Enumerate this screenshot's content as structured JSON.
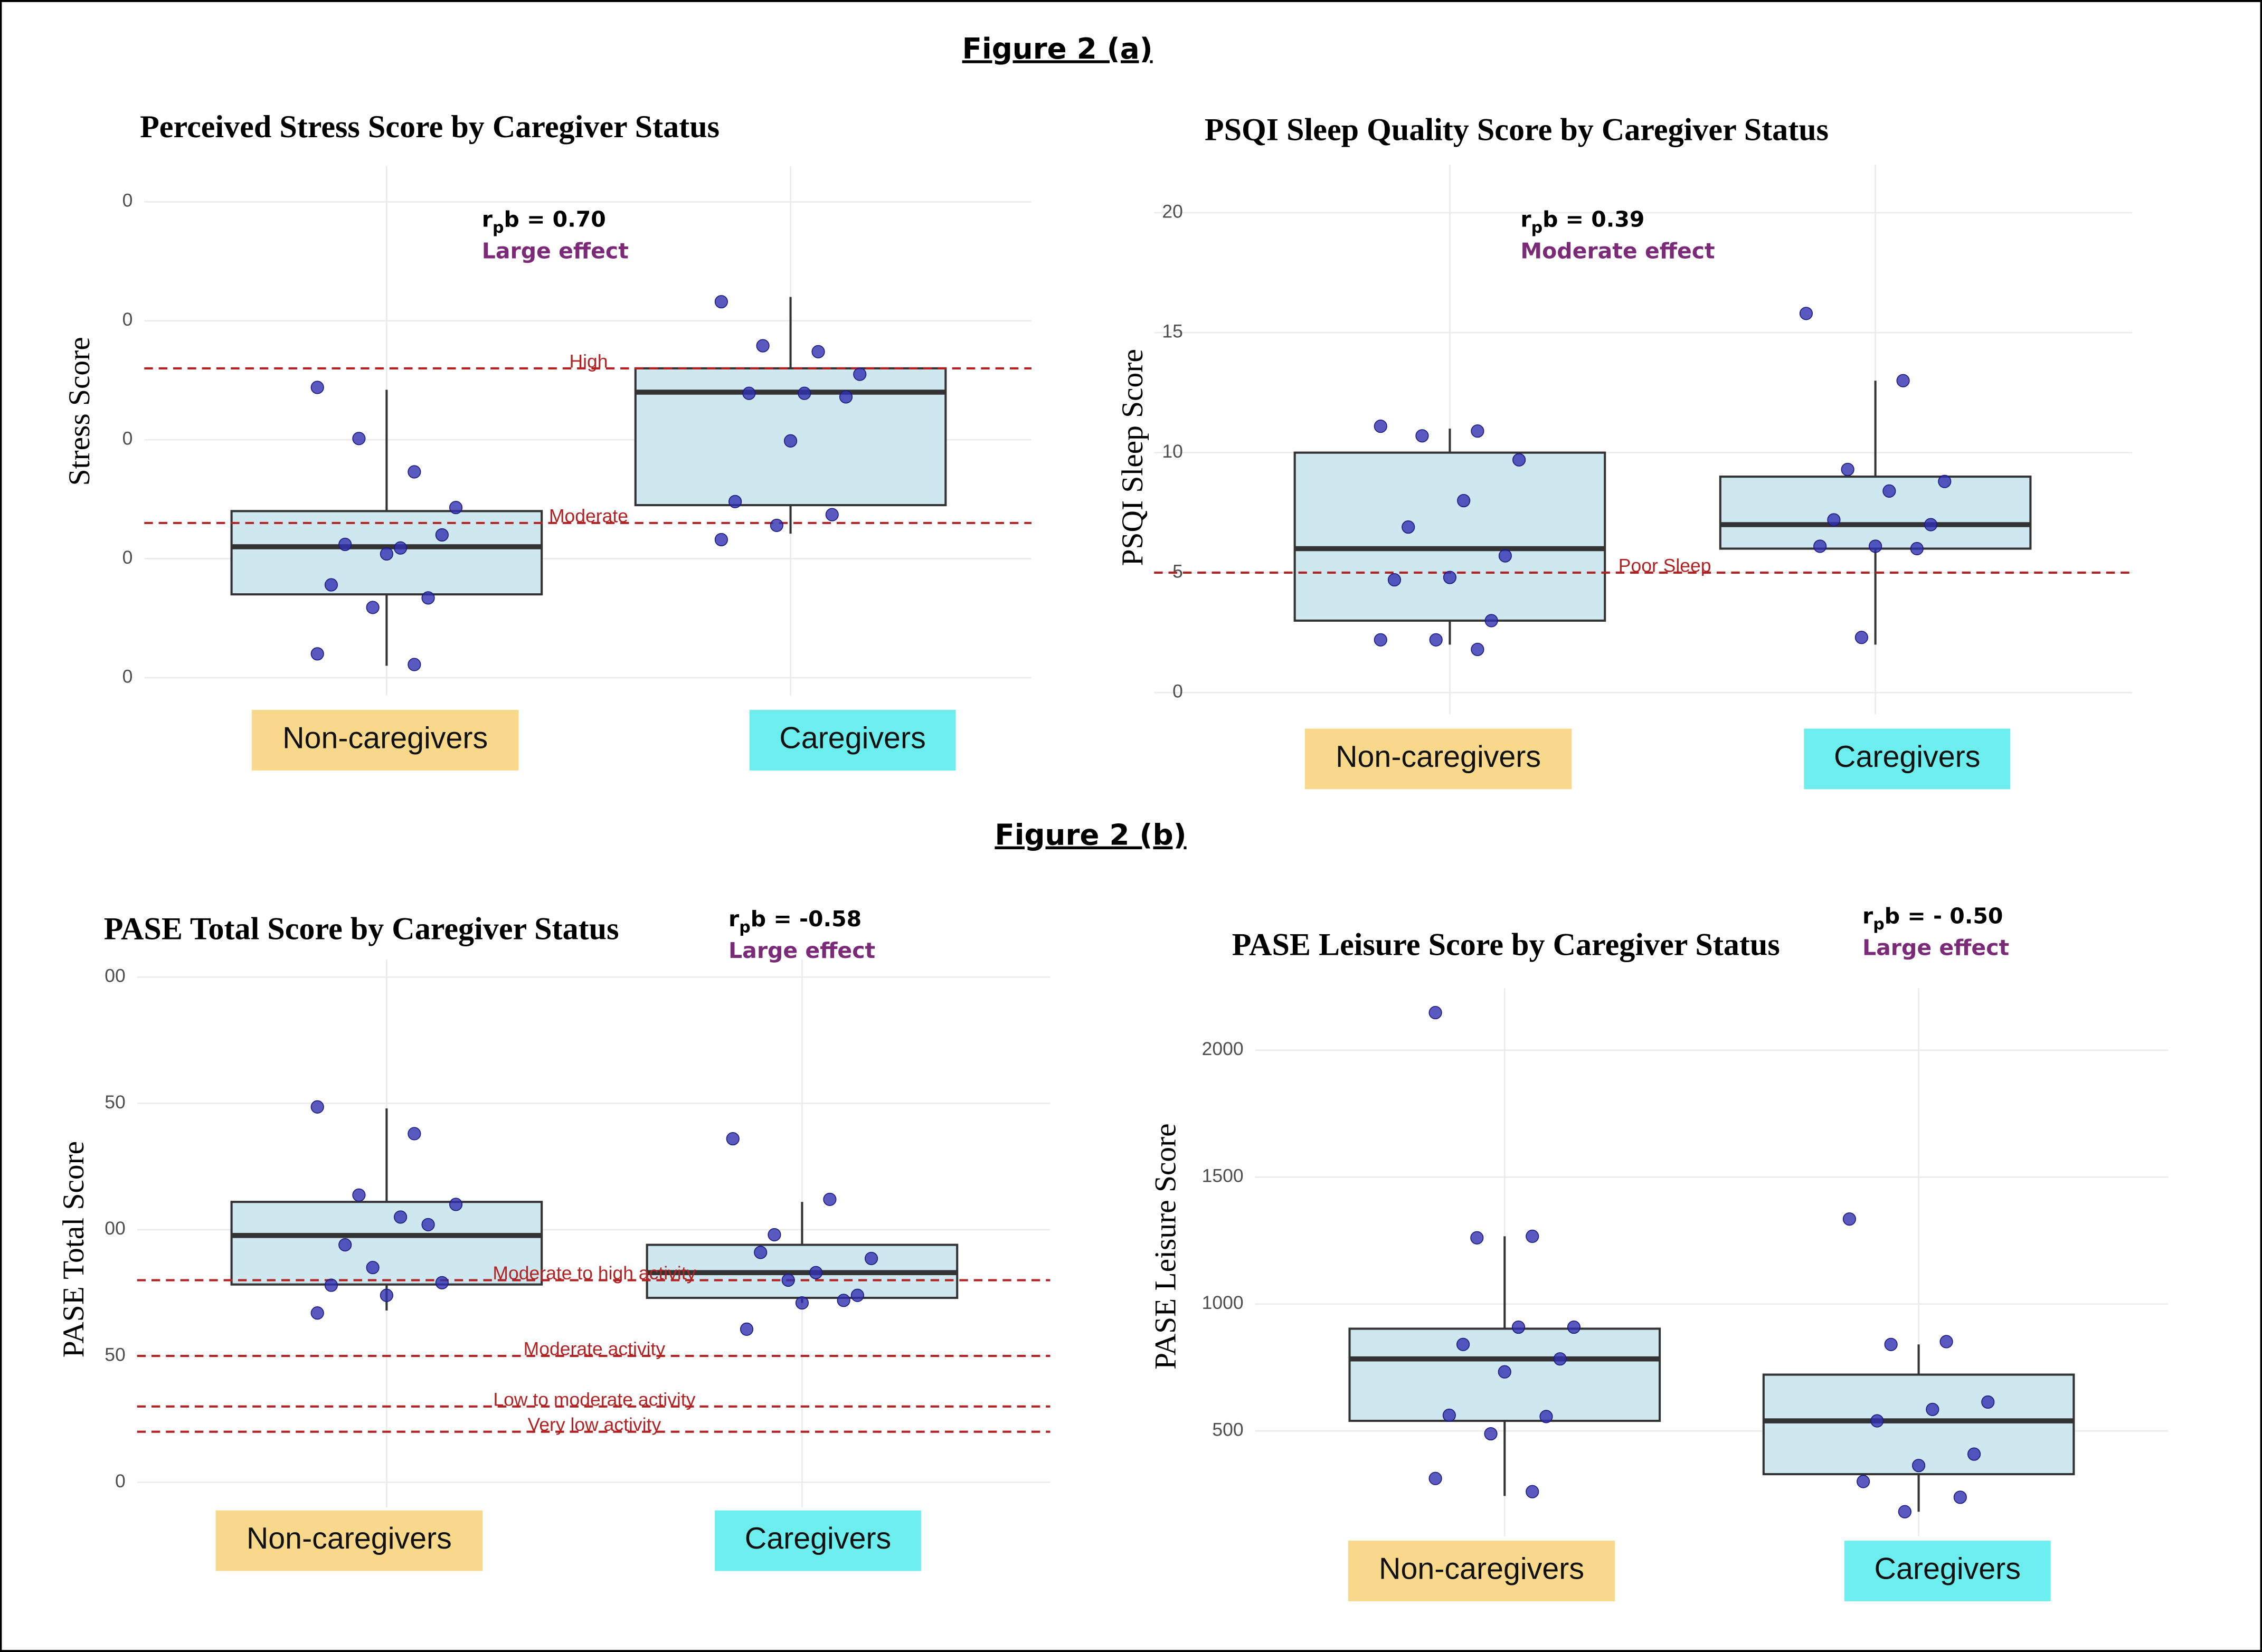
{
  "figure_labels": [
    "Figure 2 (a)",
    "Figure 2 (b)"
  ],
  "chart_data": [
    {
      "type": "box",
      "title": "Perceived Stress Score by Caregiver Status",
      "ylabel": "Stress Score",
      "categories": [
        "Non-caregivers",
        "Caregivers"
      ],
      "category_colors": [
        "#f8d98c",
        "#6deeee"
      ],
      "box_color": "#cfe8ef",
      "point_color": "#2f2fb0",
      "line_color": "#b22222",
      "grid": true,
      "ylim": [
        -1.5,
        43
      ],
      "yticks": [
        {
          "value": 0,
          "label": "0"
        },
        {
          "value": 10,
          "label": "0"
        },
        {
          "value": 20,
          "label": "0"
        },
        {
          "value": 30,
          "label": "0"
        },
        {
          "value": 40,
          "label": "0"
        }
      ],
      "reference_lines": [
        {
          "value": 26,
          "label": "High"
        },
        {
          "value": 13,
          "label": "Moderate"
        }
      ],
      "annotation": {
        "symbol": "r",
        "subscript": "p",
        "stat": "b =  0.70",
        "effect": "Large effect"
      },
      "boxes": [
        {
          "whislo": 1,
          "q1": 7,
          "median": 11,
          "q3": 14,
          "whishi": 24.2,
          "points": [
            24.4,
            17.3,
            20.1,
            14.3,
            10.9,
            11.2,
            12.0,
            10.4,
            7.8,
            6.7,
            5.9,
            2,
            1.1
          ]
        },
        {
          "whislo": 12.1,
          "q1": 14.5,
          "median": 24,
          "q3": 26,
          "whishi": 32,
          "points": [
            31.6,
            27.4,
            27.9,
            25.5,
            23.9,
            23.9,
            23.6,
            19.9,
            14.8,
            13.7,
            12.8,
            11.6
          ]
        }
      ]
    },
    {
      "type": "box",
      "title": "PSQI Sleep Quality Score by Caregiver Status",
      "ylabel": "PSQI Sleep Score",
      "categories": [
        "Non-caregivers",
        "Caregivers"
      ],
      "category_colors": [
        "#f8d98c",
        "#6deeee"
      ],
      "box_color": "#cfe8ef",
      "point_color": "#2f2fb0",
      "line_color": "#b22222",
      "grid": true,
      "ylim": [
        -0.9,
        22
      ],
      "yticks": [
        0,
        5,
        10,
        15,
        20
      ],
      "reference_lines": [
        {
          "value": 5,
          "label": "Poor Sleep"
        }
      ],
      "annotation": {
        "symbol": "r",
        "subscript": "p",
        "stat": "b =  0.39",
        "effect": "Moderate effect"
      },
      "boxes": [
        {
          "whislo": 2,
          "q1": 3,
          "median": 6,
          "q3": 10,
          "whishi": 11,
          "points": [
            11.1,
            10.9,
            10.7,
            9.7,
            8,
            6.9,
            5.7,
            4.8,
            4.7,
            3,
            2.2,
            2.2,
            1.8
          ]
        },
        {
          "whislo": 2,
          "q1": 6,
          "median": 7,
          "q3": 9,
          "whishi": 13,
          "points": [
            15.8,
            13,
            9.3,
            8.8,
            8.4,
            7.2,
            7,
            6.1,
            6.1,
            6,
            2.3
          ]
        }
      ]
    },
    {
      "type": "box",
      "title": "PASE Total Score by Caregiver Status",
      "ylabel": "PASE Total Score",
      "categories": [
        "Non-caregivers",
        "Caregivers"
      ],
      "category_colors": [
        "#f8d98c",
        "#6deeee"
      ],
      "box_color": "#cfe8ef",
      "point_color": "#2f2fb0",
      "line_color": "#b22222",
      "grid": true,
      "ylim": [
        -10,
        207
      ],
      "yticks": [
        0,
        50,
        {
          "value": 100,
          "label": "00"
        },
        {
          "value": 150,
          "label": "50"
        },
        {
          "value": 200,
          "label": "00"
        }
      ],
      "reference_lines": [
        {
          "value": 80,
          "label": "Moderate to high activity"
        },
        {
          "value": 50,
          "label": "Moderate activity"
        },
        {
          "value": 30,
          "label": "Low to moderate activity"
        },
        {
          "value": 20,
          "label": "Very low activity"
        }
      ],
      "annotation": {
        "symbol": "r",
        "subscript": "p",
        "stat": "b = -0.58",
        "effect": "Large effect"
      },
      "boxes": [
        {
          "whislo": 68,
          "q1": 78.3,
          "median": 97.7,
          "q3": 111,
          "whishi": 148,
          "points": [
            148.6,
            138,
            113.7,
            110,
            105,
            94,
            79,
            74,
            78,
            102,
            85,
            67
          ]
        },
        {
          "whislo": 71,
          "q1": 73,
          "median": 83,
          "q3": 94,
          "whishi": 111,
          "points": [
            136,
            112,
            98,
            88.6,
            83,
            91,
            74,
            71,
            60.6,
            72,
            80
          ]
        }
      ]
    },
    {
      "type": "box",
      "title": "PASE Leisure Score by Caregiver Status",
      "ylabel": "PASE Leisure Score",
      "categories": [
        "Non-caregivers",
        "Caregivers"
      ],
      "category_colors": [
        "#f8d98c",
        "#6deeee"
      ],
      "box_color": "#cfe8ef",
      "point_color": "#2f2fb0",
      "line_color": "#b22222",
      "grid": true,
      "ylim": [
        85,
        2244
      ],
      "yticks": [
        500,
        1000,
        1500,
        2000
      ],
      "reference_lines": [],
      "annotation": {
        "symbol": "r",
        "subscript": "p",
        "stat": "b = - 0.50",
        "effect": "Large effect"
      },
      "boxes": [
        {
          "whislo": 244,
          "q1": 540,
          "median": 784,
          "q3": 903,
          "whishi": 1267,
          "points": [
            2148,
            1267,
            1261,
            909,
            909,
            841,
            784,
            733,
            562,
            557,
            489,
            313,
            261
          ]
        },
        {
          "whislo": 182,
          "q1": 330,
          "median": 540,
          "q3": 722,
          "whishi": 841,
          "points": [
            1335,
            852,
            841,
            614,
            585,
            540,
            409,
            364,
            301,
            239,
            182
          ]
        }
      ]
    }
  ]
}
